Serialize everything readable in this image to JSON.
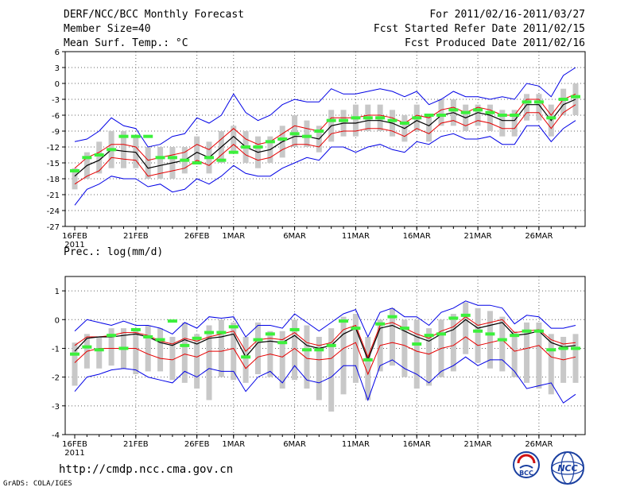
{
  "header": {
    "title": "DERF/NCC/BCC Monthly Forecast",
    "member_size": "Member Size=40",
    "period": "For 2011/02/16-2011/03/27",
    "refer_date": "Fcst Started Refer Date 2011/02/15",
    "produced_date": "Fcst Produced Date 2011/02/16"
  },
  "footer": {
    "url": "http://cmdp.ncc.cma.gov.cn",
    "grads": "GrADS: COLA/IGES",
    "logo_bcc": "BCC",
    "logo_ncc": "NCC"
  },
  "colors": {
    "ensemble_mean": "#000000",
    "inner_band": "#e60000",
    "outer_band": "#0000e6",
    "box": "#c8c8c8",
    "observed": "#3cf03c"
  },
  "chart_data": [
    {
      "type": "line",
      "title": "Mean Surf. Temp.: °C",
      "days": 41,
      "ylim": [
        -27,
        6
      ],
      "yticks": [
        6,
        3,
        0,
        -3,
        -6,
        -9,
        -12,
        -15,
        -18,
        -21,
        -24,
        -27
      ],
      "xtick_labels": [
        {
          "day": 0,
          "label": "16FEB"
        },
        {
          "day": 5,
          "label": "21FEB"
        },
        {
          "day": 10,
          "label": "26FEB"
        },
        {
          "day": 13,
          "label": "1MAR"
        },
        {
          "day": 18,
          "label": "6MAR"
        },
        {
          "day": 23,
          "label": "11MAR"
        },
        {
          "day": 28,
          "label": "16MAR"
        },
        {
          "day": 33,
          "label": "21MAR"
        },
        {
          "day": 38,
          "label": "26MAR"
        }
      ],
      "year_label": "2011",
      "series": [
        {
          "name": "ensemble_mean",
          "values": [
            -17.5,
            -15.5,
            -14.5,
            -12.5,
            -12.8,
            -13,
            -16,
            -15.5,
            -15,
            -14.5,
            -13,
            -14,
            -12,
            -10,
            -12,
            -13,
            -12.5,
            -11,
            -10,
            -10,
            -10.5,
            -8,
            -7.5,
            -7.5,
            -7,
            -7,
            -7.5,
            -8.5,
            -7,
            -8,
            -6,
            -5.5,
            -6.5,
            -5.5,
            -6,
            -7,
            -7,
            -4,
            -4,
            -7,
            -4,
            -3
          ]
        },
        {
          "name": "upper_inner",
          "values": [
            -16,
            -14,
            -13,
            -11.5,
            -11.5,
            -12,
            -14.5,
            -14,
            -13.5,
            -13,
            -11.5,
            -12.5,
            -10.5,
            -8.5,
            -10.5,
            -11.5,
            -11,
            -9.5,
            -8,
            -8.5,
            -9,
            -6.5,
            -6.5,
            -6.5,
            -6,
            -6,
            -6.5,
            -7.5,
            -6,
            -6.5,
            -5,
            -4.5,
            -5.5,
            -4.5,
            -5,
            -6,
            -6,
            -3,
            -3,
            -6,
            -3,
            -2
          ]
        },
        {
          "name": "lower_inner",
          "values": [
            -19,
            -17.5,
            -16.5,
            -14,
            -14.3,
            -14.5,
            -17.5,
            -17,
            -16.5,
            -16,
            -14.5,
            -15.5,
            -13.5,
            -11.5,
            -13.5,
            -14.5,
            -14,
            -12.5,
            -11.5,
            -11.5,
            -12,
            -9.5,
            -9,
            -9,
            -8.5,
            -8.5,
            -9,
            -10,
            -8.5,
            -9.5,
            -7.5,
            -7,
            -8,
            -7,
            -7.5,
            -8.5,
            -8.5,
            -5.5,
            -5.5,
            -8.5,
            -5.5,
            -4
          ]
        },
        {
          "name": "upper_outer",
          "values": [
            -11,
            -10.5,
            -9,
            -6.5,
            -8,
            -8.5,
            -12,
            -11.5,
            -10,
            -9.5,
            -6.5,
            -7.5,
            -6,
            -2,
            -5.5,
            -7,
            -6,
            -4,
            -3,
            -3.5,
            -3.5,
            -1,
            -2,
            -2,
            -1.5,
            -1,
            -1.5,
            -2.5,
            -1.5,
            -4,
            -3,
            -1.5,
            -2.5,
            -2.5,
            -3,
            -2.5,
            -3,
            0,
            -0.5,
            -2.5,
            1.5,
            3
          ]
        },
        {
          "name": "lower_outer",
          "values": [
            -23,
            -20,
            -19,
            -17.5,
            -18,
            -18,
            -19.5,
            -19,
            -20.5,
            -20,
            -18,
            -19,
            -17.5,
            -15.5,
            -17,
            -17.5,
            -17.5,
            -16,
            -15,
            -14,
            -14.5,
            -12,
            -12,
            -13,
            -12,
            -11.5,
            -12.5,
            -13,
            -11,
            -11.5,
            -10,
            -9.5,
            -10.5,
            -10.5,
            -10,
            -11.5,
            -11.5,
            -8,
            -8,
            -11,
            -8.5,
            -7
          ]
        },
        {
          "name": "box_top",
          "values": [
            -16,
            -13,
            -11,
            -9,
            -9,
            -10,
            -12,
            -12,
            -12,
            -12,
            -10,
            -11,
            -9,
            -8,
            -9,
            -10,
            -10,
            -8,
            -6,
            -7,
            -8,
            -5,
            -5,
            -4,
            -4,
            -4,
            -5,
            -6,
            -4,
            -6,
            -3,
            -3,
            -4,
            -4,
            -4,
            -5,
            -5,
            -2,
            -2,
            -4,
            -1,
            0
          ]
        },
        {
          "name": "box_bottom",
          "values": [
            -20,
            -18,
            -17,
            -16,
            -16,
            -16,
            -18,
            -18,
            -18,
            -17,
            -15,
            -17,
            -15,
            -13,
            -15,
            -16,
            -15,
            -14,
            -12,
            -12,
            -13,
            -11,
            -10,
            -10,
            -9,
            -9,
            -10,
            -11,
            -9,
            -11,
            -8,
            -8,
            -9,
            -8,
            -9,
            -10,
            -10,
            -7,
            -7,
            -10,
            -6,
            -6
          ]
        },
        {
          "name": "observed",
          "values": [
            -16.5,
            -14,
            -13.5,
            -12.5,
            -10,
            -10,
            -10,
            -14,
            -14,
            -14.5,
            -15,
            -14,
            -14.5,
            -13,
            -12,
            -12,
            -11,
            -10.5,
            -9.5,
            -10,
            -9,
            -7,
            -7,
            -6.5,
            -6.5,
            -6.5,
            -7,
            -7.5,
            -6.5,
            -6,
            -6,
            -5,
            -5.5,
            -5,
            -5.5,
            -6,
            -6,
            -3.5,
            -3.5,
            -6.5,
            -3,
            -2.5
          ]
        }
      ]
    },
    {
      "type": "line",
      "title": "Prec.: log(mm/d)",
      "days": 41,
      "ylim": [
        -4,
        1.5
      ],
      "yticks": [
        1,
        0,
        -1,
        -2,
        -3,
        -4
      ],
      "xtick_labels": [
        {
          "day": 0,
          "label": "16FEB"
        },
        {
          "day": 5,
          "label": "21FEB"
        },
        {
          "day": 10,
          "label": "26FEB"
        },
        {
          "day": 13,
          "label": "1MAR"
        },
        {
          "day": 18,
          "label": "6MAR"
        },
        {
          "day": 23,
          "label": "11MAR"
        },
        {
          "day": 28,
          "label": "16MAR"
        },
        {
          "day": 33,
          "label": "21MAR"
        },
        {
          "day": 38,
          "label": "26MAR"
        }
      ],
      "year_label": "2011",
      "series": [
        {
          "name": "ensemble_mean",
          "values": [
            -1.1,
            -0.65,
            -0.6,
            -0.6,
            -0.55,
            -0.5,
            -0.6,
            -0.8,
            -0.9,
            -0.7,
            -0.85,
            -0.65,
            -0.6,
            -0.5,
            -1.3,
            -0.8,
            -0.75,
            -0.8,
            -0.55,
            -0.9,
            -1,
            -0.9,
            -0.5,
            -0.3,
            -1.4,
            -0.3,
            -0.2,
            -0.4,
            -0.6,
            -0.75,
            -0.5,
            -0.35,
            0,
            -0.3,
            -0.2,
            -0.1,
            -0.55,
            -0.5,
            -0.4,
            -0.8,
            -0.95,
            -0.9
          ]
        },
        {
          "name": "upper_inner",
          "values": [
            -0.9,
            -0.6,
            -0.6,
            -0.55,
            -0.45,
            -0.45,
            -0.55,
            -0.75,
            -0.85,
            -0.65,
            -0.75,
            -0.6,
            -0.5,
            -0.4,
            -1.1,
            -0.7,
            -0.65,
            -0.7,
            -0.45,
            -0.8,
            -0.9,
            -0.8,
            -0.35,
            -0.2,
            -1.3,
            -0.2,
            -0.1,
            -0.3,
            -0.5,
            -0.65,
            -0.4,
            -0.25,
            0.1,
            -0.2,
            -0.1,
            0,
            -0.45,
            -0.4,
            -0.35,
            -0.7,
            -0.85,
            -0.8
          ]
        },
        {
          "name": "lower_inner",
          "values": [
            -1.5,
            -1.1,
            -1,
            -1,
            -1,
            -1,
            -1.2,
            -1.35,
            -1.4,
            -1.2,
            -1.3,
            -1.1,
            -1.1,
            -1,
            -1.7,
            -1.3,
            -1.2,
            -1.3,
            -1,
            -1.35,
            -1.4,
            -1.35,
            -1,
            -0.8,
            -1.9,
            -0.9,
            -0.8,
            -0.9,
            -1.1,
            -1.2,
            -1,
            -0.9,
            -0.6,
            -0.9,
            -0.8,
            -0.7,
            -1.1,
            -1,
            -0.9,
            -1.3,
            -1.4,
            -1.3
          ]
        },
        {
          "name": "upper_outer",
          "values": [
            -0.4,
            0,
            -0.1,
            -0.2,
            -0.05,
            -0.2,
            -0.2,
            -0.3,
            -0.5,
            -0.1,
            -0.3,
            0.1,
            0.05,
            0.1,
            -0.6,
            -0.2,
            -0.2,
            -0.3,
            0.2,
            -0.1,
            -0.4,
            -0.1,
            0.2,
            0.35,
            -0.6,
            0.25,
            0.4,
            0.1,
            0.1,
            -0.2,
            0.25,
            0.4,
            0.65,
            0.5,
            0.5,
            0.4,
            -0.15,
            0.15,
            0.1,
            -0.3,
            -0.3,
            -0.2
          ]
        },
        {
          "name": "lower_outer",
          "values": [
            -2.5,
            -2,
            -1.9,
            -1.75,
            -1.7,
            -1.75,
            -2,
            -2.1,
            -2.2,
            -1.8,
            -2,
            -1.7,
            -1.8,
            -1.8,
            -2.5,
            -2,
            -1.8,
            -2.2,
            -1.6,
            -2.1,
            -2.2,
            -2,
            -1.6,
            -1.6,
            -2.8,
            -1.6,
            -1.4,
            -1.7,
            -1.9,
            -2.2,
            -1.8,
            -1.6,
            -1.3,
            -1.6,
            -1.4,
            -1.4,
            -1.8,
            -2.4,
            -2.3,
            -2.2,
            -2.9,
            -2.6
          ]
        },
        {
          "name": "box_top",
          "values": [
            -0.8,
            -0.5,
            -0.6,
            -0.3,
            -0.3,
            -0.3,
            -0.2,
            -0.3,
            -0.6,
            -0.1,
            -0.5,
            -0.2,
            0,
            -0.1,
            -0.6,
            -0.1,
            -0.4,
            -0.4,
            0,
            -0.2,
            -0.6,
            -0.3,
            0.1,
            0.2,
            -0.6,
            0,
            0.4,
            0,
            0,
            -0.3,
            0,
            0.2,
            0.6,
            0.4,
            0.3,
            0.1,
            -0.4,
            -0.1,
            -0.1,
            -0.5,
            -0.6,
            -0.5
          ]
        },
        {
          "name": "box_bottom",
          "values": [
            -2.3,
            -1.7,
            -1.7,
            -1.6,
            -1.7,
            -1.9,
            -1.8,
            -1.8,
            -2.1,
            -2.2,
            -2.4,
            -2.8,
            -2,
            -2.1,
            -2.2,
            -1.9,
            -2,
            -2.4,
            -2.1,
            -2.4,
            -2.8,
            -3.2,
            -2.6,
            -2.2,
            -2.8,
            -1.8,
            -1.6,
            -2,
            -2.4,
            -2.3,
            -2,
            -1.8,
            -1.2,
            -1.5,
            -1.7,
            -1.8,
            -2,
            -2.2,
            -2.4,
            -2.6,
            -2.2,
            -2.2
          ]
        },
        {
          "name": "observed",
          "values": [
            -1.2,
            -0.95,
            -1.05,
            -0.55,
            -1,
            -0.35,
            -0.6,
            -0.7,
            -0.05,
            -0.9,
            -0.65,
            -0.45,
            -0.45,
            -0.25,
            -1.3,
            -0.7,
            -0.5,
            -0.8,
            -0.35,
            -1.05,
            -1.05,
            -0.9,
            -0.05,
            -0.3,
            -1.4,
            -0.15,
            0.1,
            -0.3,
            -0.85,
            -0.55,
            -0.5,
            0.05,
            0.15,
            -0.4,
            -0.5,
            -0.7,
            -0.55,
            -0.4,
            -0.4,
            -1.05,
            -1,
            -1
          ]
        }
      ]
    }
  ]
}
